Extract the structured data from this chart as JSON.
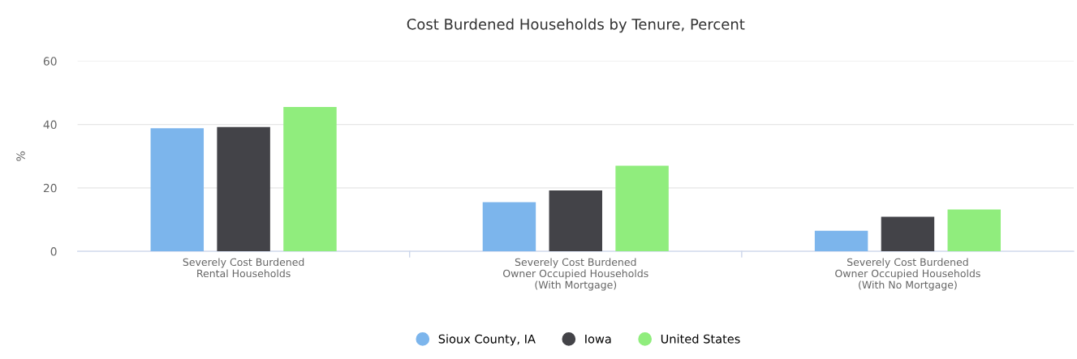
{
  "chart_data": {
    "type": "bar",
    "title": "Cost Burdened Households by Tenure, Percent",
    "ylabel": "%",
    "categories": [
      "Severely Cost Burdened\nRental Households",
      "Severely Cost Burdened\nOwner Occupied Households\n(With Mortgage)",
      "Severely Cost Burdened\nOwner Occupied Households\n(With No Mortgage)"
    ],
    "series": [
      {
        "name": "Sioux County, IA",
        "color": "#7cb5ec",
        "values": [
          38.8,
          15.5,
          6.5
        ]
      },
      {
        "name": "Iowa",
        "color": "#434348",
        "values": [
          39.2,
          19.2,
          10.9
        ]
      },
      {
        "name": "United States",
        "color": "#90ed7d",
        "values": [
          45.5,
          27.0,
          13.2
        ]
      }
    ],
    "ylim": [
      0,
      60
    ],
    "yticks": [
      0,
      20,
      40,
      60
    ],
    "grid": "y",
    "legend": "bottom"
  }
}
